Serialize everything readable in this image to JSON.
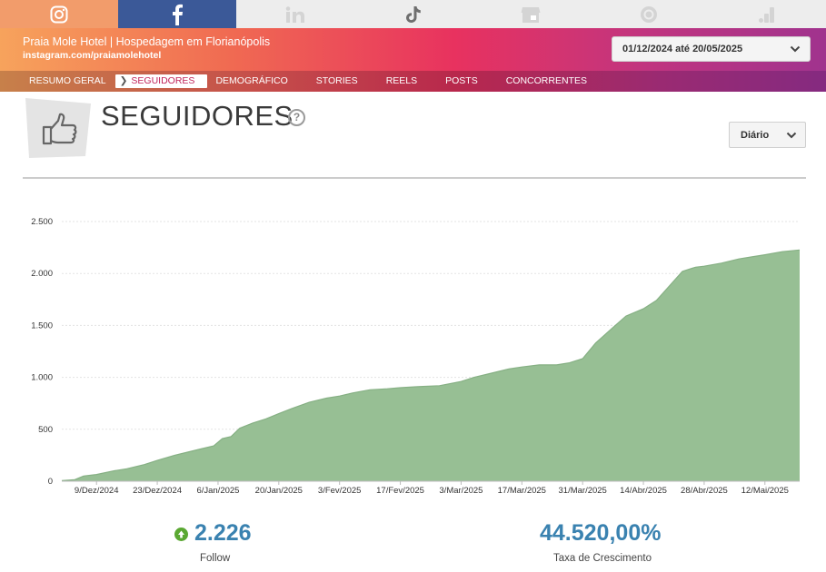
{
  "networks": [
    {
      "name": "instagram-icon",
      "color": "#f29c6b"
    },
    {
      "name": "facebook-icon",
      "color": "#3b5998"
    },
    {
      "name": "linkedin-icon",
      "color": "#ededed"
    },
    {
      "name": "tiktok-icon",
      "color": "#ededed"
    },
    {
      "name": "google-business-icon",
      "color": "#ededed"
    },
    {
      "name": "threads-icon",
      "color": "#ededed"
    },
    {
      "name": "google-analytics-icon",
      "color": "#ededed"
    }
  ],
  "profile": {
    "name": "Praia Mole Hotel | Hospedagem em Florianópolis",
    "url": "instagram.com/praiamolehotel"
  },
  "date_range": "01/12/2024 até 20/05/2025",
  "nav": {
    "items": [
      "RESUMO GERAL",
      "SEGUIDORES",
      "DEMOGRÁFICO",
      "STORIES",
      "REELS",
      "POSTS",
      "CONCORRENTES"
    ],
    "active": "SEGUIDORES"
  },
  "page": {
    "title": "SEGUIDORES",
    "help": "?",
    "period": "Diário"
  },
  "colors": {
    "area_fill": "#97bf94",
    "area_stroke": "#86b084",
    "accent_blue": "#3a82b0",
    "up_green": "#5aa832"
  },
  "chart_data": {
    "type": "area",
    "title": "",
    "xlabel": "",
    "ylabel": "",
    "ylim": [
      0,
      2500
    ],
    "yticks": [
      0,
      500,
      1000,
      1500,
      2000,
      2500
    ],
    "ytick_labels": [
      "0",
      "500",
      "1.000",
      "1.500",
      "2.000",
      "2.500"
    ],
    "xtick_labels": [
      {
        "date": "2024-12-09",
        "label": "9/Dez/2024"
      },
      {
        "date": "2024-12-23",
        "label": "23/Dez/2024"
      },
      {
        "date": "2025-01-06",
        "label": "6/Jan/2025"
      },
      {
        "date": "2025-01-20",
        "label": "20/Jan/2025"
      },
      {
        "date": "2025-02-03",
        "label": "3/Fev/2025"
      },
      {
        "date": "2025-02-17",
        "label": "17/Fev/2025"
      },
      {
        "date": "2025-03-03",
        "label": "3/Mar/2025"
      },
      {
        "date": "2025-03-17",
        "label": "17/Mar/2025"
      },
      {
        "date": "2025-03-31",
        "label": "31/Mar/2025"
      },
      {
        "date": "2025-04-14",
        "label": "14/Abr/2025"
      },
      {
        "date": "2025-04-28",
        "label": "28/Abr/2025"
      },
      {
        "date": "2025-05-12",
        "label": "12/Mai/2025"
      }
    ],
    "x_range": [
      "2024-12-01",
      "2025-05-20"
    ],
    "grid": true,
    "series": [
      {
        "values": [
          [
            "2024-12-01",
            5
          ],
          [
            "2024-12-04",
            15
          ],
          [
            "2024-12-06",
            50
          ],
          [
            "2024-12-09",
            65
          ],
          [
            "2024-12-13",
            100
          ],
          [
            "2024-12-16",
            120
          ],
          [
            "2024-12-20",
            160
          ],
          [
            "2024-12-23",
            200
          ],
          [
            "2024-12-27",
            250
          ],
          [
            "2024-12-30",
            280
          ],
          [
            "2025-01-02",
            310
          ],
          [
            "2025-01-05",
            340
          ],
          [
            "2025-01-07",
            410
          ],
          [
            "2025-01-09",
            430
          ],
          [
            "2025-01-11",
            510
          ],
          [
            "2025-01-14",
            560
          ],
          [
            "2025-01-17",
            600
          ],
          [
            "2025-01-20",
            650
          ],
          [
            "2025-01-23",
            700
          ],
          [
            "2025-01-27",
            760
          ],
          [
            "2025-01-31",
            800
          ],
          [
            "2025-02-03",
            820
          ],
          [
            "2025-02-06",
            850
          ],
          [
            "2025-02-10",
            880
          ],
          [
            "2025-02-14",
            890
          ],
          [
            "2025-02-17",
            900
          ],
          [
            "2025-02-21",
            910
          ],
          [
            "2025-02-26",
            920
          ],
          [
            "2025-03-03",
            960
          ],
          [
            "2025-03-06",
            1000
          ],
          [
            "2025-03-10",
            1040
          ],
          [
            "2025-03-14",
            1080
          ],
          [
            "2025-03-17",
            1100
          ],
          [
            "2025-03-21",
            1120
          ],
          [
            "2025-03-25",
            1120
          ],
          [
            "2025-03-28",
            1140
          ],
          [
            "2025-03-31",
            1180
          ],
          [
            "2025-04-03",
            1330
          ],
          [
            "2025-04-07",
            1480
          ],
          [
            "2025-04-10",
            1590
          ],
          [
            "2025-04-14",
            1660
          ],
          [
            "2025-04-17",
            1740
          ],
          [
            "2025-04-20",
            1880
          ],
          [
            "2025-04-23",
            2020
          ],
          [
            "2025-04-26",
            2060
          ],
          [
            "2025-04-28",
            2070
          ],
          [
            "2025-05-02",
            2100
          ],
          [
            "2025-05-06",
            2140
          ],
          [
            "2025-05-09",
            2160
          ],
          [
            "2025-05-12",
            2180
          ],
          [
            "2025-05-16",
            2210
          ],
          [
            "2025-05-20",
            2226
          ]
        ]
      }
    ]
  },
  "kpis": {
    "followers_value": "2.226",
    "followers_label": "Follow",
    "growth_value": "44.520,00%",
    "growth_label": "Taxa de Crescimento"
  }
}
